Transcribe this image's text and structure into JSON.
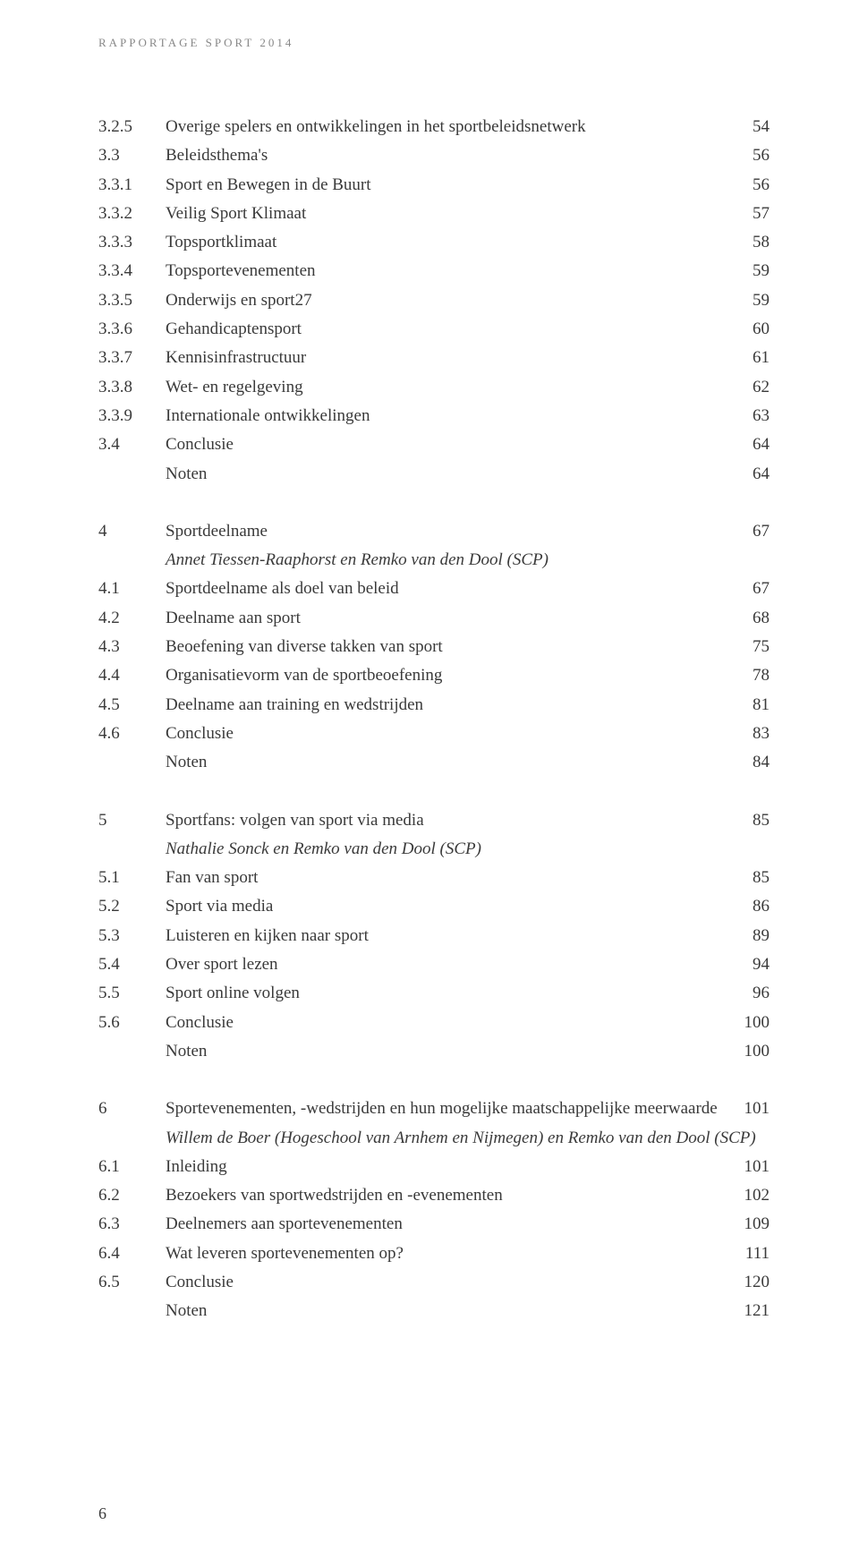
{
  "running_header": "RAPPORTAGE SPORT 2014",
  "page_number": "6",
  "sections": [
    {
      "rows": [
        {
          "num": "3.2.5",
          "label": "Overige spelers en ontwikkelingen in het sportbeleidsnetwerk",
          "page": "54"
        },
        {
          "num": "3.3",
          "label": "Beleidsthema's",
          "page": "56"
        },
        {
          "num": "3.3.1",
          "label": "Sport en Bewegen in de Buurt",
          "page": "56"
        },
        {
          "num": "3.3.2",
          "label": "Veilig Sport Klimaat",
          "page": "57"
        },
        {
          "num": "3.3.3",
          "label": "Topsportklimaat",
          "page": "58"
        },
        {
          "num": "3.3.4",
          "label": "Topsportevenementen",
          "page": "59"
        },
        {
          "num": "3.3.5",
          "label": "Onderwijs en sport27",
          "page": "59"
        },
        {
          "num": "3.3.6",
          "label": "Gehandicaptensport",
          "page": "60"
        },
        {
          "num": "3.3.7",
          "label": "Kennisinfrastructuur",
          "page": "61"
        },
        {
          "num": "3.3.8",
          "label": "Wet- en regelgeving",
          "page": "62"
        },
        {
          "num": "3.3.9",
          "label": "Internationale ontwikkelingen",
          "page": "63"
        },
        {
          "num": "3.4",
          "label": "Conclusie",
          "page": "64"
        },
        {
          "num": "",
          "label": "Noten",
          "page": "64"
        }
      ]
    },
    {
      "rows": [
        {
          "num": "4",
          "label": "Sportdeelname",
          "page": "67"
        }
      ],
      "author": "Annet Tiessen-Raaphorst en Remko van den Dool (SCP)",
      "rows_after": [
        {
          "num": "4.1",
          "label": "Sportdeelname als doel van beleid",
          "page": "67"
        },
        {
          "num": "4.2",
          "label": "Deelname aan sport",
          "page": "68"
        },
        {
          "num": "4.3",
          "label": "Beoefening van diverse takken van sport",
          "page": "75"
        },
        {
          "num": "4.4",
          "label": "Organisatievorm van de sportbeoefening",
          "page": "78"
        },
        {
          "num": "4.5",
          "label": "Deelname aan training en wedstrijden",
          "page": "81"
        },
        {
          "num": "4.6",
          "label": "Conclusie",
          "page": "83"
        },
        {
          "num": "",
          "label": "Noten",
          "page": "84"
        }
      ]
    },
    {
      "rows": [
        {
          "num": "5",
          "label": "Sportfans: volgen van sport via media",
          "page": "85"
        }
      ],
      "author": "Nathalie Sonck en Remko van den Dool (SCP)",
      "rows_after": [
        {
          "num": "5.1",
          "label": "Fan van sport",
          "page": "85"
        },
        {
          "num": "5.2",
          "label": "Sport via media",
          "page": "86"
        },
        {
          "num": "5.3",
          "label": "Luisteren en kijken naar sport",
          "page": "89"
        },
        {
          "num": "5.4",
          "label": "Over sport lezen",
          "page": "94"
        },
        {
          "num": "5.5",
          "label": "Sport online volgen",
          "page": "96"
        },
        {
          "num": "5.6",
          "label": "Conclusie",
          "page": "100"
        },
        {
          "num": "",
          "label": "Noten",
          "page": "100"
        }
      ]
    },
    {
      "rows": [
        {
          "num": "6",
          "label": "Sportevenementen, -wedstrijden en hun mogelijke maatschappelijke meerwaarde",
          "page": "101"
        }
      ],
      "author": "Willem de Boer (Hogeschool van Arnhem en Nijmegen) en Remko van den Dool (SCP)",
      "rows_after": [
        {
          "num": "6.1",
          "label": "Inleiding",
          "page": "101"
        },
        {
          "num": "6.2",
          "label": "Bezoekers van sportwedstrijden en -evenementen",
          "page": "102"
        },
        {
          "num": "6.3",
          "label": "Deelnemers aan sportevenementen",
          "page": "109"
        },
        {
          "num": "6.4",
          "label": "Wat leveren sportevenementen op?",
          "page": "111"
        },
        {
          "num": "6.5",
          "label": "Conclusie",
          "page": "120"
        },
        {
          "num": "",
          "label": "Noten",
          "page": "121"
        }
      ]
    }
  ]
}
